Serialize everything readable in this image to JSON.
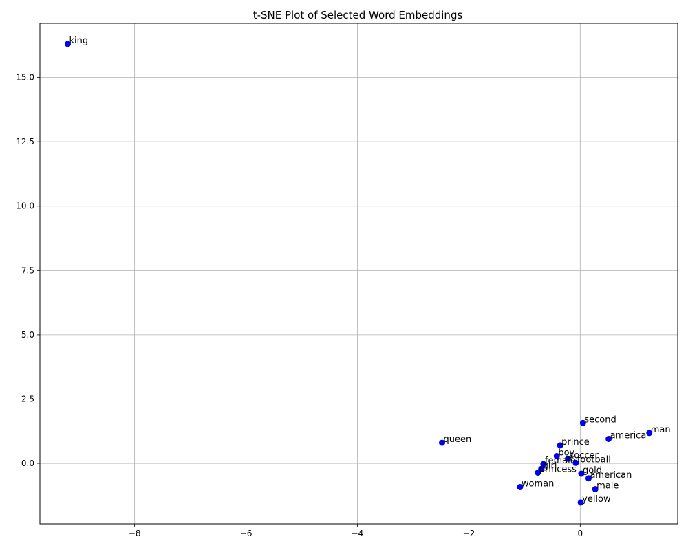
{
  "chart_data": {
    "type": "scatter",
    "title": "t-SNE Plot of Selected Word Embeddings",
    "xlabel": "",
    "ylabel": "",
    "xlim": [
      -9.7,
      1.75
    ],
    "ylim": [
      -2.35,
      17.1
    ],
    "x_ticks": [
      -8,
      -6,
      -4,
      -2,
      0
    ],
    "x_tick_labels": [
      "−8",
      "−6",
      "−4",
      "−2",
      "0"
    ],
    "y_ticks": [
      0.0,
      2.5,
      5.0,
      7.5,
      10.0,
      12.5,
      15.0
    ],
    "y_tick_labels": [
      "0.0",
      "2.5",
      "5.0",
      "7.5",
      "10.0",
      "12.5",
      "15.0"
    ],
    "grid": true,
    "marker_color": "#0000ee",
    "points": [
      {
        "label": "king",
        "x": -9.2,
        "y": 16.3
      },
      {
        "label": "queen",
        "x": -2.48,
        "y": 0.8
      },
      {
        "label": "second",
        "x": 0.05,
        "y": 1.57
      },
      {
        "label": "man",
        "x": 1.24,
        "y": 1.18
      },
      {
        "label": "america",
        "x": 0.51,
        "y": 0.95
      },
      {
        "label": "prince",
        "x": -0.36,
        "y": 0.7
      },
      {
        "label": "boy",
        "x": -0.42,
        "y": 0.28
      },
      {
        "label": "soccer",
        "x": -0.22,
        "y": 0.18
      },
      {
        "label": "football",
        "x": -0.08,
        "y": 0.02
      },
      {
        "label": "female",
        "x": -0.66,
        "y": -0.03
      },
      {
        "label": "girl",
        "x": -0.7,
        "y": -0.22
      },
      {
        "label": "princess",
        "x": -0.76,
        "y": -0.36
      },
      {
        "label": "gold",
        "x": 0.02,
        "y": -0.4
      },
      {
        "label": "american",
        "x": 0.15,
        "y": -0.58
      },
      {
        "label": "male",
        "x": 0.27,
        "y": -1.0
      },
      {
        "label": "woman",
        "x": -1.08,
        "y": -0.92
      },
      {
        "label": "yellow",
        "x": 0.01,
        "y": -1.52
      }
    ]
  }
}
